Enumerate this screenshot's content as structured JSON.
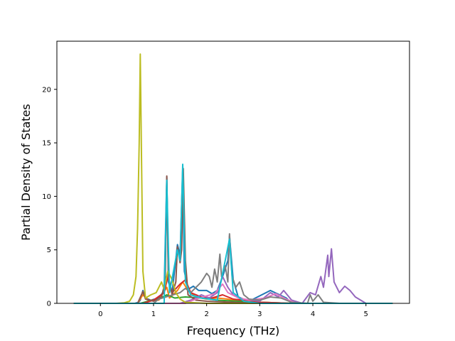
{
  "chart_data": {
    "type": "line",
    "xlabel": "Frequency (THz)",
    "ylabel": "Partial Density of States",
    "xlim": [
      -0.82,
      5.82
    ],
    "ylim": [
      0,
      24.5
    ],
    "xticks": [
      "0",
      "1",
      "2",
      "3",
      "4",
      "5"
    ],
    "xtick_values": [
      0,
      1,
      2,
      3,
      4,
      5
    ],
    "yticks": [
      "0",
      "5",
      "10",
      "15",
      "20"
    ],
    "ytick_values": [
      0,
      5,
      10,
      15,
      20
    ],
    "grid": false,
    "legend": "none",
    "series": [
      {
        "color": "#1f77b4",
        "points": [
          [
            -0.5,
            0
          ],
          [
            0.65,
            0
          ],
          [
            0.72,
            0.1
          ],
          [
            0.75,
            0.3
          ],
          [
            0.8,
            1.2
          ],
          [
            0.85,
            0.5
          ],
          [
            0.95,
            0.3
          ],
          [
            1.1,
            0.5
          ],
          [
            1.2,
            1.2
          ],
          [
            1.25,
            11.8
          ],
          [
            1.28,
            2.0
          ],
          [
            1.35,
            1.0
          ],
          [
            1.45,
            5.5
          ],
          [
            1.5,
            4.5
          ],
          [
            1.55,
            12.5
          ],
          [
            1.58,
            3.0
          ],
          [
            1.65,
            1.3
          ],
          [
            1.75,
            1.6
          ],
          [
            1.85,
            1.2
          ],
          [
            2.0,
            1.2
          ],
          [
            2.1,
            0.9
          ],
          [
            2.2,
            1.2
          ],
          [
            2.3,
            2.5
          ],
          [
            2.4,
            4.0
          ],
          [
            2.43,
            6.3
          ],
          [
            2.5,
            2.2
          ],
          [
            2.6,
            0.5
          ],
          [
            2.8,
            0.2
          ],
          [
            3.2,
            1.2
          ],
          [
            3.5,
            0.5
          ],
          [
            3.6,
            0
          ],
          [
            5.5,
            0
          ]
        ]
      },
      {
        "color": "#ff7f0e",
        "points": [
          [
            -0.5,
            0
          ],
          [
            0.7,
            0
          ],
          [
            0.8,
            0.8
          ],
          [
            0.9,
            0.3
          ],
          [
            1.1,
            0.3
          ],
          [
            1.25,
            1.5
          ],
          [
            1.3,
            0.5
          ],
          [
            1.45,
            1.2
          ],
          [
            1.55,
            2.0
          ],
          [
            1.65,
            1.2
          ],
          [
            1.8,
            0.6
          ],
          [
            2.0,
            0.4
          ],
          [
            2.2,
            0.5
          ],
          [
            2.4,
            0.4
          ],
          [
            2.6,
            0.2
          ],
          [
            3.0,
            0.1
          ],
          [
            3.6,
            0
          ],
          [
            5.5,
            0
          ]
        ]
      },
      {
        "color": "#2ca02c",
        "points": [
          [
            -0.5,
            0
          ],
          [
            0.75,
            0
          ],
          [
            0.9,
            0.2
          ],
          [
            1.1,
            0.4
          ],
          [
            1.25,
            0.8
          ],
          [
            1.4,
            0.5
          ],
          [
            1.6,
            0.6
          ],
          [
            1.9,
            0.5
          ],
          [
            2.2,
            0.3
          ],
          [
            2.6,
            0.2
          ],
          [
            3.0,
            0.1
          ],
          [
            3.6,
            0
          ],
          [
            5.5,
            0
          ]
        ]
      },
      {
        "color": "#d62728",
        "points": [
          [
            -0.5,
            0
          ],
          [
            0.8,
            0
          ],
          [
            1.0,
            0.3
          ],
          [
            1.2,
            1.0
          ],
          [
            1.27,
            2.5
          ],
          [
            1.35,
            1.0
          ],
          [
            1.5,
            1.8
          ],
          [
            1.6,
            2.2
          ],
          [
            1.7,
            1.0
          ],
          [
            1.9,
            0.6
          ],
          [
            2.1,
            0.5
          ],
          [
            2.3,
            0.8
          ],
          [
            2.5,
            0.4
          ],
          [
            3.0,
            0.1
          ],
          [
            3.6,
            0
          ],
          [
            5.5,
            0
          ]
        ]
      },
      {
        "color": "#9467bd",
        "points": [
          [
            -0.5,
            0
          ],
          [
            1.5,
            0
          ],
          [
            1.7,
            0.3
          ],
          [
            1.9,
            0.8
          ],
          [
            2.05,
            0.5
          ],
          [
            2.2,
            1.0
          ],
          [
            2.3,
            2.5
          ],
          [
            2.4,
            1.5
          ],
          [
            2.5,
            0.8
          ],
          [
            2.7,
            0.4
          ],
          [
            3.0,
            0.2
          ],
          [
            3.2,
            1.0
          ],
          [
            3.35,
            0.6
          ],
          [
            3.45,
            1.2
          ],
          [
            3.6,
            0.3
          ],
          [
            3.8,
            0
          ],
          [
            3.95,
            1.0
          ],
          [
            4.05,
            0.8
          ],
          [
            4.15,
            2.5
          ],
          [
            4.2,
            1.5
          ],
          [
            4.28,
            4.5
          ],
          [
            4.3,
            2.5
          ],
          [
            4.35,
            5.1
          ],
          [
            4.4,
            2.0
          ],
          [
            4.5,
            1.0
          ],
          [
            4.6,
            1.6
          ],
          [
            4.7,
            1.2
          ],
          [
            4.8,
            0.6
          ],
          [
            4.9,
            0.3
          ],
          [
            5.0,
            0
          ],
          [
            5.5,
            0
          ]
        ]
      },
      {
        "color": "#8c564b",
        "points": [
          [
            -0.5,
            0
          ],
          [
            0.7,
            0
          ],
          [
            0.8,
            1.1
          ],
          [
            0.85,
            0.4
          ],
          [
            1.0,
            0.2
          ],
          [
            1.15,
            0.6
          ],
          [
            1.22,
            2.0
          ],
          [
            1.25,
            11.9
          ],
          [
            1.28,
            2.5
          ],
          [
            1.35,
            0.8
          ],
          [
            1.42,
            2.0
          ],
          [
            1.45,
            5.3
          ],
          [
            1.5,
            3.8
          ],
          [
            1.53,
            5.0
          ],
          [
            1.56,
            12.6
          ],
          [
            1.6,
            4.0
          ],
          [
            1.65,
            0.8
          ],
          [
            1.8,
            0.3
          ],
          [
            2.0,
            0.2
          ],
          [
            2.5,
            0.1
          ],
          [
            3.0,
            0
          ],
          [
            5.5,
            0
          ]
        ]
      },
      {
        "color": "#e377c2",
        "points": [
          [
            -0.5,
            0
          ],
          [
            1.6,
            0
          ],
          [
            1.8,
            0.4
          ],
          [
            2.0,
            0.7
          ],
          [
            2.15,
            0.9
          ],
          [
            2.3,
            1.8
          ],
          [
            2.4,
            1.0
          ],
          [
            2.6,
            0.5
          ],
          [
            2.8,
            0.3
          ],
          [
            3.1,
            0.5
          ],
          [
            3.3,
            0.9
          ],
          [
            3.5,
            0.4
          ],
          [
            3.7,
            0
          ],
          [
            5.5,
            0
          ]
        ]
      },
      {
        "color": "#7f7f7f",
        "points": [
          [
            -0.5,
            0
          ],
          [
            1.0,
            0
          ],
          [
            1.1,
            0.4
          ],
          [
            1.3,
            0.7
          ],
          [
            1.5,
            1.0
          ],
          [
            1.6,
            1.4
          ],
          [
            1.7,
            1.0
          ],
          [
            1.8,
            1.5
          ],
          [
            1.9,
            2.0
          ],
          [
            2.0,
            2.8
          ],
          [
            2.05,
            2.5
          ],
          [
            2.1,
            1.5
          ],
          [
            2.15,
            3.2
          ],
          [
            2.2,
            2.0
          ],
          [
            2.25,
            4.6
          ],
          [
            2.28,
            2.5
          ],
          [
            2.35,
            3.5
          ],
          [
            2.4,
            2.0
          ],
          [
            2.43,
            6.5
          ],
          [
            2.48,
            2.5
          ],
          [
            2.55,
            1.5
          ],
          [
            2.62,
            2.0
          ],
          [
            2.7,
            0.8
          ],
          [
            2.8,
            0.4
          ],
          [
            3.0,
            0.3
          ],
          [
            3.2,
            0.6
          ],
          [
            3.4,
            0.5
          ],
          [
            3.6,
            0.1
          ],
          [
            3.9,
            0
          ],
          [
            3.95,
            0.8
          ],
          [
            4.0,
            0.2
          ],
          [
            4.1,
            0.8
          ],
          [
            4.2,
            0.1
          ],
          [
            4.5,
            0
          ],
          [
            5.5,
            0
          ]
        ]
      },
      {
        "color": "#bcbd22",
        "points": [
          [
            -0.5,
            0
          ],
          [
            0.3,
            0
          ],
          [
            0.45,
            0.05
          ],
          [
            0.55,
            0.2
          ],
          [
            0.62,
            0.8
          ],
          [
            0.67,
            2.5
          ],
          [
            0.7,
            7.0
          ],
          [
            0.73,
            15.0
          ],
          [
            0.75,
            23.3
          ],
          [
            0.77,
            15.0
          ],
          [
            0.8,
            3.0
          ],
          [
            0.85,
            0.5
          ],
          [
            0.95,
            0.8
          ],
          [
            1.05,
            1.0
          ],
          [
            1.15,
            2.0
          ],
          [
            1.2,
            1.3
          ],
          [
            1.27,
            3.0
          ],
          [
            1.35,
            2.2
          ],
          [
            1.42,
            1.0
          ],
          [
            1.5,
            0.4
          ],
          [
            1.6,
            0.1
          ],
          [
            2.0,
            0
          ],
          [
            5.5,
            0
          ]
        ]
      },
      {
        "color": "#17becf",
        "points": [
          [
            -0.5,
            0
          ],
          [
            1.2,
            0
          ],
          [
            1.25,
            11.5
          ],
          [
            1.3,
            1.0
          ],
          [
            1.45,
            5.0
          ],
          [
            1.5,
            4.0
          ],
          [
            1.55,
            13.0
          ],
          [
            1.6,
            2.0
          ],
          [
            1.7,
            0.8
          ],
          [
            1.9,
            0.5
          ],
          [
            2.2,
            0.3
          ],
          [
            2.43,
            6.0
          ],
          [
            2.5,
            1.0
          ],
          [
            2.7,
            0.2
          ],
          [
            3.0,
            0
          ],
          [
            5.5,
            0
          ]
        ]
      }
    ]
  }
}
